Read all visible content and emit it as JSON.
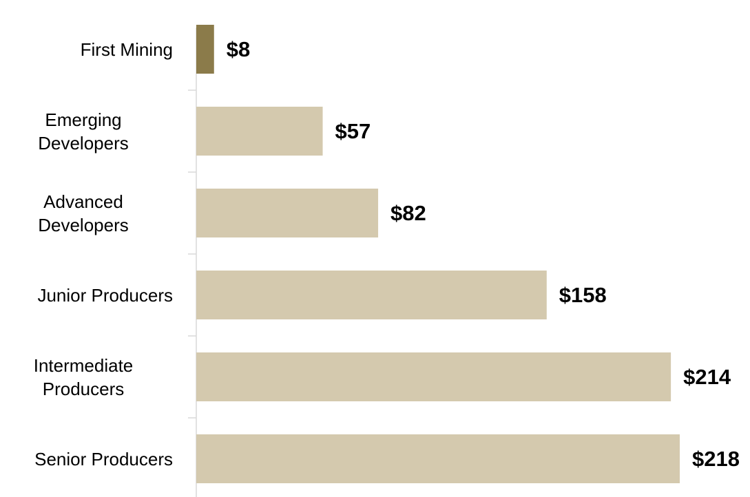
{
  "chart_data": {
    "type": "barh",
    "categories": [
      "First Mining",
      "Emerging\nDevelopers",
      "Advanced\nDevelopers",
      "Junior Producers",
      "Intermediate\nProducers",
      "Senior Producers"
    ],
    "values": [
      8,
      57,
      82,
      158,
      214,
      218
    ],
    "value_labels": [
      "$8",
      "$57",
      "$82",
      "$158",
      "$214",
      "$218"
    ],
    "colors": [
      "#8b7b4a",
      "#d4c9ae",
      "#d4c9ae",
      "#d4c9ae",
      "#d4c9ae",
      "#d4c9ae"
    ]
  }
}
